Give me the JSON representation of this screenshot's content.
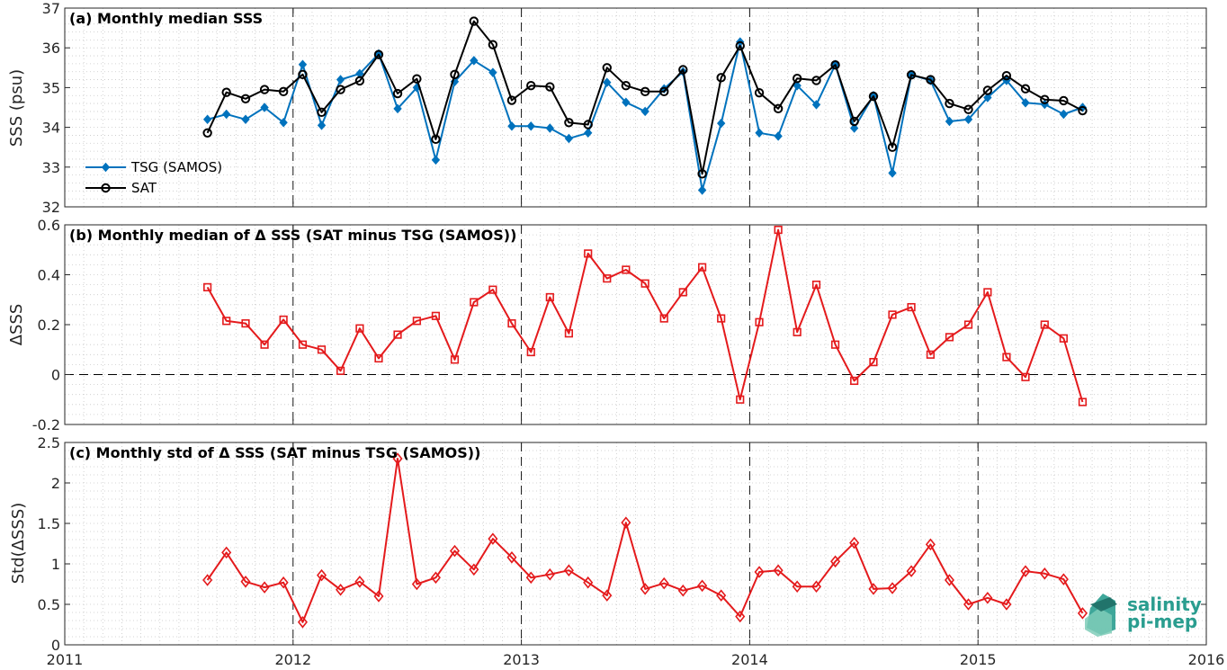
{
  "chart_data": [
    {
      "type": "line",
      "title": "(a) Monthly median SSS",
      "xlabel": "",
      "ylabel": "SSS (psu)",
      "ylim": [
        32,
        37
      ],
      "yticks": [
        "32",
        "33",
        "34",
        "35",
        "36",
        "37"
      ],
      "xlim": [
        2011,
        2016
      ],
      "xticks": [
        "2011",
        "2012",
        "2013",
        "2014",
        "2015",
        "2016"
      ],
      "grid": "minor dotted",
      "legend_position": "bottom-left",
      "x": [
        2011.625,
        2011.708,
        2011.792,
        2011.875,
        2011.958,
        2012.042,
        2012.125,
        2012.208,
        2012.292,
        2012.375,
        2012.458,
        2012.542,
        2012.625,
        2012.708,
        2012.792,
        2012.875,
        2012.958,
        2013.042,
        2013.125,
        2013.208,
        2013.292,
        2013.375,
        2013.458,
        2013.542,
        2013.625,
        2013.708,
        2013.792,
        2013.875,
        2013.958,
        2014.042,
        2014.125,
        2014.208,
        2014.292,
        2014.375,
        2014.458,
        2014.542,
        2014.625,
        2014.708,
        2014.792,
        2014.875,
        2014.958,
        2015.042,
        2015.125,
        2015.208,
        2015.292,
        2015.375,
        2015.458
      ],
      "series": [
        {
          "name": "TSG (SAMOS)",
          "color": "#0072bd",
          "marker": "diamond",
          "values": [
            34.2,
            34.33,
            34.2,
            34.5,
            34.12,
            35.58,
            34.05,
            35.2,
            35.35,
            35.85,
            34.47,
            35.0,
            33.18,
            35.15,
            35.68,
            35.38,
            34.03,
            34.03,
            33.98,
            33.72,
            33.86,
            35.13,
            34.63,
            34.4,
            34.97,
            35.4,
            32.42,
            34.1,
            36.15,
            33.86,
            33.78,
            35.05,
            34.57,
            35.58,
            33.98,
            34.8,
            32.85,
            35.32,
            35.18,
            34.15,
            34.2,
            34.75,
            35.18,
            34.62,
            34.58,
            34.33,
            34.5
          ]
        },
        {
          "name": "SAT",
          "color": "#000000",
          "marker": "circle",
          "values": [
            33.86,
            34.88,
            34.72,
            34.95,
            34.9,
            35.33,
            34.38,
            34.95,
            35.17,
            35.83,
            34.85,
            35.22,
            33.7,
            35.33,
            36.67,
            36.08,
            34.68,
            35.05,
            35.02,
            34.12,
            34.07,
            35.5,
            35.05,
            34.9,
            34.9,
            35.45,
            32.83,
            35.25,
            36.05,
            34.87,
            34.47,
            35.23,
            35.18,
            35.57,
            34.15,
            34.78,
            33.5,
            35.32,
            35.2,
            34.6,
            34.45,
            34.93,
            35.3,
            34.97,
            34.7,
            34.67,
            34.42
          ]
        }
      ]
    },
    {
      "type": "line",
      "title": "(b) Monthly median of Δ SSS (SAT minus TSG (SAMOS))",
      "xlabel": "",
      "ylabel": "ΔSSS",
      "ylim": [
        -0.2,
        0.6
      ],
      "yticks": [
        "-0.2",
        "0",
        "0.2",
        "0.4",
        "0.6"
      ],
      "xlim": [
        2011,
        2016
      ],
      "grid": "minor dotted",
      "reference_line": 0,
      "x": [
        2011.625,
        2011.708,
        2011.792,
        2011.875,
        2011.958,
        2012.042,
        2012.125,
        2012.208,
        2012.292,
        2012.375,
        2012.458,
        2012.542,
        2012.625,
        2012.708,
        2012.792,
        2012.875,
        2012.958,
        2013.042,
        2013.125,
        2013.208,
        2013.292,
        2013.375,
        2013.458,
        2013.542,
        2013.625,
        2013.708,
        2013.792,
        2013.875,
        2013.958,
        2014.042,
        2014.125,
        2014.208,
        2014.292,
        2014.375,
        2014.458,
        2014.542,
        2014.625,
        2014.708,
        2014.792,
        2014.875,
        2014.958,
        2015.042,
        2015.125,
        2015.208,
        2015.292,
        2015.375,
        2015.458
      ],
      "series": [
        {
          "color": "#e41a1c",
          "marker": "square",
          "values": [
            0.35,
            0.215,
            0.205,
            0.12,
            0.22,
            0.12,
            0.1,
            0.015,
            0.185,
            0.065,
            0.16,
            0.215,
            0.235,
            0.06,
            0.29,
            0.34,
            0.205,
            0.09,
            0.31,
            0.165,
            0.485,
            0.385,
            0.42,
            0.365,
            0.225,
            0.33,
            0.43,
            0.225,
            -0.1,
            0.21,
            0.58,
            0.17,
            0.36,
            0.12,
            -0.025,
            0.05,
            0.24,
            0.27,
            0.08,
            0.15,
            0.2,
            0.33,
            0.07,
            -0.01,
            0.2,
            0.145,
            -0.11
          ]
        }
      ]
    },
    {
      "type": "line",
      "title": "(c) Monthly std of Δ SSS (SAT minus TSG (SAMOS))",
      "xlabel": "",
      "ylabel": "Std(ΔSSS)",
      "ylim": [
        0,
        2.5
      ],
      "yticks": [
        "0",
        "0.5",
        "1",
        "1.5",
        "2",
        "2.5"
      ],
      "xlim": [
        2011,
        2016
      ],
      "xticks": [
        "2011",
        "2012",
        "2013",
        "2014",
        "2015",
        "2016"
      ],
      "grid": "minor dotted",
      "x": [
        2011.625,
        2011.708,
        2011.792,
        2011.875,
        2011.958,
        2012.042,
        2012.125,
        2012.208,
        2012.292,
        2012.375,
        2012.458,
        2012.542,
        2012.625,
        2012.708,
        2012.792,
        2012.875,
        2012.958,
        2013.042,
        2013.125,
        2013.208,
        2013.292,
        2013.375,
        2013.458,
        2013.542,
        2013.625,
        2013.708,
        2013.792,
        2013.875,
        2013.958,
        2014.042,
        2014.125,
        2014.208,
        2014.292,
        2014.375,
        2014.458,
        2014.542,
        2014.625,
        2014.708,
        2014.792,
        2014.875,
        2014.958,
        2015.042,
        2015.125,
        2015.208,
        2015.292,
        2015.375,
        2015.458
      ],
      "series": [
        {
          "color": "#e41a1c",
          "marker": "diamond-open",
          "values": [
            0.8,
            1.14,
            0.78,
            0.71,
            0.77,
            0.28,
            0.86,
            0.68,
            0.78,
            0.6,
            2.3,
            0.75,
            0.83,
            1.16,
            0.93,
            1.31,
            1.08,
            0.83,
            0.87,
            0.92,
            0.77,
            0.61,
            1.51,
            0.69,
            0.76,
            0.67,
            0.73,
            0.61,
            0.35,
            0.9,
            0.92,
            0.72,
            0.72,
            1.03,
            1.26,
            0.69,
            0.7,
            0.91,
            1.24,
            0.8,
            0.5,
            0.58,
            0.5,
            0.91,
            0.88,
            0.81,
            0.39
          ]
        }
      ]
    }
  ],
  "logo": {
    "line1": "salinity",
    "line2": "pi-mep",
    "color": "#2a9d8f"
  }
}
